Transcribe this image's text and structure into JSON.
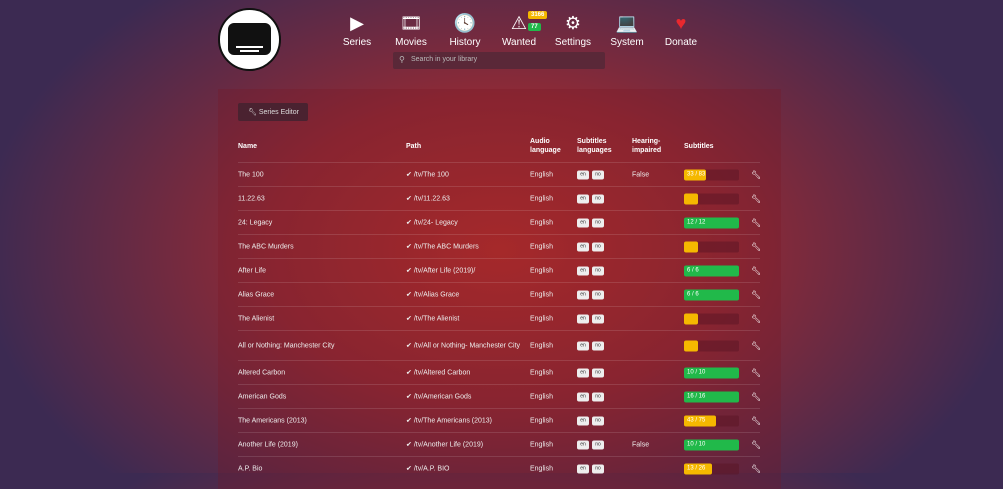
{
  "nav": {
    "items": [
      {
        "label": "Series",
        "icon": "play-icon",
        "glyph": "▶"
      },
      {
        "label": "Movies",
        "icon": "film-icon",
        "glyph": "🎞"
      },
      {
        "label": "History",
        "icon": "clock-icon",
        "glyph": "🕓"
      },
      {
        "label": "Wanted",
        "icon": "warning-icon",
        "glyph": "⚠"
      },
      {
        "label": "Settings",
        "icon": "gears-icon",
        "glyph": "⚙"
      },
      {
        "label": "System",
        "icon": "laptop-icon",
        "glyph": "💻"
      },
      {
        "label": "Donate",
        "icon": "heart-icon",
        "glyph": "♥"
      }
    ],
    "wanted_badges": {
      "series": "3166",
      "movies": "77"
    },
    "badge_colors": {
      "series": "#f5b800",
      "movies": "#21b94a"
    }
  },
  "search": {
    "placeholder": "Search in your library"
  },
  "toolbar": {
    "series_editor": "Series Editor"
  },
  "table": {
    "headers": {
      "name": "Name",
      "path": "Path",
      "audio": "Audio language",
      "subs_langs": "Subtitles languages",
      "hi": "Hearing-impaired",
      "subtitles": "Subtitles"
    },
    "rows": [
      {
        "name": "The 100",
        "path": "/tv/The 100",
        "audio": "English",
        "langs": [
          "en",
          "no"
        ],
        "hi": "False",
        "progress": "33 / 83",
        "fraction": 0.4,
        "color": "#f5b800"
      },
      {
        "name": "11.22.63",
        "path": "/tv/11.22.63",
        "audio": "English",
        "langs": [
          "en",
          "no"
        ],
        "hi": "",
        "progress": "",
        "fraction": 0,
        "color": "#f5b800"
      },
      {
        "name": "24: Legacy",
        "path": "/tv/24- Legacy",
        "audio": "English",
        "langs": [
          "en",
          "no"
        ],
        "hi": "",
        "progress": "12 / 12",
        "fraction": 1,
        "color": "#21b94a"
      },
      {
        "name": "The ABC Murders",
        "path": "/tv/The ABC Murders",
        "audio": "English",
        "langs": [
          "en",
          "no"
        ],
        "hi": "",
        "progress": "",
        "fraction": 0,
        "color": "#f5b800"
      },
      {
        "name": "After Life",
        "path": "/tv/After Life (2019)/",
        "audio": "English",
        "langs": [
          "en",
          "no"
        ],
        "hi": "",
        "progress": "6 / 6",
        "fraction": 1,
        "color": "#21b94a"
      },
      {
        "name": "Alias Grace",
        "path": "/tv/Alias Grace",
        "audio": "English",
        "langs": [
          "en",
          "no"
        ],
        "hi": "",
        "progress": "6 / 6",
        "fraction": 1,
        "color": "#21b94a"
      },
      {
        "name": "The Alienist",
        "path": "/tv/The Alienist",
        "audio": "English",
        "langs": [
          "en",
          "no"
        ],
        "hi": "",
        "progress": "",
        "fraction": 0,
        "color": "#f5b800"
      },
      {
        "name": "All or Nothing: Manchester City",
        "path": "/tv/All or Nothing- Manchester City",
        "audio": "English",
        "langs": [
          "en",
          "no"
        ],
        "hi": "",
        "progress": "",
        "fraction": 0,
        "color": "#f5b800"
      },
      {
        "name": "Altered Carbon",
        "path": "/tv/Altered Carbon",
        "audio": "English",
        "langs": [
          "en",
          "no"
        ],
        "hi": "",
        "progress": "10 / 10",
        "fraction": 1,
        "color": "#21b94a"
      },
      {
        "name": "American Gods",
        "path": "/tv/American Gods",
        "audio": "English",
        "langs": [
          "en",
          "no"
        ],
        "hi": "",
        "progress": "16 / 16",
        "fraction": 1,
        "color": "#21b94a"
      },
      {
        "name": "The Americans (2013)",
        "path": "/tv/The Americans (2013)",
        "audio": "English",
        "langs": [
          "en",
          "no"
        ],
        "hi": "",
        "progress": "43 / 75",
        "fraction": 0.573,
        "color": "#f5b800"
      },
      {
        "name": "Another Life (2019)",
        "path": "/tv/Another Life (2019)",
        "audio": "English",
        "langs": [
          "en",
          "no"
        ],
        "hi": "False",
        "progress": "10 / 10",
        "fraction": 1,
        "color": "#21b94a"
      },
      {
        "name": "A.P. Bio",
        "path": "/tv/A.P. BIO",
        "audio": "English",
        "langs": [
          "en",
          "no"
        ],
        "hi": "",
        "progress": "13 / 26",
        "fraction": 0.5,
        "color": "#f5b800"
      }
    ]
  }
}
